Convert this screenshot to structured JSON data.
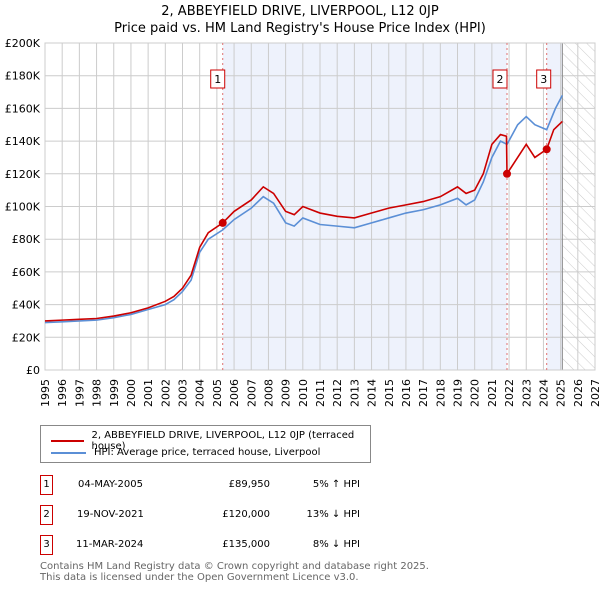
{
  "title": "2, ABBEYFIELD DRIVE, LIVERPOOL, L12 0JP",
  "subtitle": "Price paid vs. HM Land Registry's House Price Index (HPI)",
  "chart_data": {
    "type": "line",
    "title": "2, ABBEYFIELD DRIVE, LIVERPOOL, L12 0JP",
    "xlim": [
      1995,
      2027
    ],
    "ylim": [
      0,
      200000
    ],
    "yticks": [
      "£0",
      "£20K",
      "£40K",
      "£60K",
      "£80K",
      "£100K",
      "£120K",
      "£140K",
      "£160K",
      "£180K",
      "£200K"
    ],
    "xticks": [
      "1995",
      "1996",
      "1997",
      "1998",
      "1999",
      "2000",
      "2001",
      "2002",
      "2003",
      "2004",
      "2005",
      "2006",
      "2007",
      "2008",
      "2009",
      "2010",
      "2011",
      "2012",
      "2013",
      "2014",
      "2015",
      "2016",
      "2017",
      "2018",
      "2019",
      "2020",
      "2021",
      "2022",
      "2023",
      "2024",
      "2025",
      "2026",
      "2027"
    ],
    "series": [
      {
        "name": "2, ABBEYFIELD DRIVE, LIVERPOOL, L12 0JP (terraced house)",
        "color": "#cc0000",
        "x": [
          1995,
          1996,
          1997,
          1998,
          1999,
          2000,
          2001,
          2002,
          2002.5,
          2003,
          2003.5,
          2004,
          2004.5,
          2005.34,
          2006,
          2007,
          2007.7,
          2008.3,
          2009,
          2009.5,
          2010,
          2011,
          2012,
          2013,
          2014,
          2015,
          2016,
          2017,
          2018,
          2019,
          2019.5,
          2020,
          2020.5,
          2021,
          2021.5,
          2021.85,
          2021.88,
          2022.5,
          2023,
          2023.5,
          2024.19,
          2024.6,
          2025.1
        ],
        "y": [
          30000,
          30500,
          31000,
          31500,
          33000,
          35000,
          38000,
          42000,
          45000,
          50000,
          58000,
          75000,
          84000,
          89950,
          97000,
          104000,
          112000,
          108000,
          97000,
          95000,
          100000,
          96000,
          94000,
          93000,
          96000,
          99000,
          101000,
          103000,
          106000,
          112000,
          108000,
          110000,
          120000,
          138000,
          144000,
          143000,
          120000,
          130000,
          138000,
          130000,
          135000,
          147000,
          152000
        ]
      },
      {
        "name": "HPI: Average price, terraced house, Liverpool",
        "color": "#5b8fd6",
        "x": [
          1995,
          1996,
          1997,
          1998,
          1999,
          2000,
          2001,
          2002,
          2002.5,
          2003,
          2003.5,
          2004,
          2004.5,
          2005.34,
          2006,
          2007,
          2007.7,
          2008.3,
          2009,
          2009.5,
          2010,
          2011,
          2012,
          2013,
          2014,
          2015,
          2016,
          2017,
          2018,
          2019,
          2019.5,
          2020,
          2020.5,
          2021,
          2021.5,
          2021.88,
          2022.5,
          2023,
          2023.5,
          2024.19,
          2024.7,
          2025.1
        ],
        "y": [
          29000,
          29500,
          30000,
          30500,
          32000,
          34000,
          37000,
          40000,
          43000,
          48000,
          55000,
          72000,
          80000,
          85700,
          92000,
          99000,
          106000,
          102000,
          90000,
          88000,
          93000,
          89000,
          88000,
          87000,
          90000,
          93000,
          96000,
          98000,
          101000,
          105000,
          101000,
          104000,
          115000,
          130000,
          140000,
          138000,
          150000,
          155000,
          150000,
          147000,
          160000,
          168000
        ]
      }
    ],
    "sales": [
      {
        "label": "1",
        "x": 2005.34,
        "y": 89950,
        "date": "04-MAY-2005",
        "price": "£89,950",
        "hpi": "5% ↑ HPI"
      },
      {
        "label": "2",
        "x": 2021.88,
        "y": 120000,
        "date": "19-NOV-2021",
        "price": "£120,000",
        "hpi": "13% ↓ HPI"
      },
      {
        "label": "3",
        "x": 2024.19,
        "y": 135000,
        "date": "11-MAR-2024",
        "price": "£135,000",
        "hpi": "8% ↓ HPI"
      }
    ],
    "data_end": 2025.1
  },
  "legend": {
    "red": "2, ABBEYFIELD DRIVE, LIVERPOOL, L12 0JP (terraced house)",
    "blue": "HPI: Average price, terraced house, Liverpool"
  },
  "footer": {
    "line1": "Contains HM Land Registry data © Crown copyright and database right 2025.",
    "line2": "This data is licensed under the Open Government Licence v3.0."
  }
}
